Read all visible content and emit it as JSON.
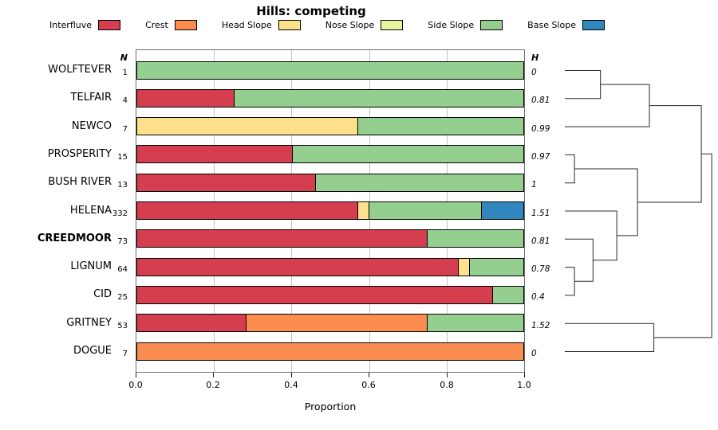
{
  "chart_data": {
    "type": "bar",
    "variant": "horizontal-stacked-proportion-with-dendrogram",
    "title": "Hills: competing",
    "xlabel": "Proportion",
    "xlim": [
      0,
      1
    ],
    "x_ticks": [
      {
        "label": "0.0",
        "value": 0.0
      },
      {
        "label": "0.2",
        "value": 0.2
      },
      {
        "label": "0.4",
        "value": 0.4
      },
      {
        "label": "0.6",
        "value": 0.6
      },
      {
        "label": "0.8",
        "value": 0.8
      },
      {
        "label": "1.0",
        "value": 1.0
      }
    ],
    "gridlines_x": [
      0.2,
      0.4,
      0.6,
      0.8
    ],
    "col_header_left": "N",
    "col_header_right": "H",
    "legend_position": "top",
    "categories": [
      {
        "label": "Interfluve",
        "color": "#D53E4F"
      },
      {
        "label": "Crest",
        "color": "#FB8D51"
      },
      {
        "label": "Head Slope",
        "color": "#FDE08B"
      },
      {
        "label": "Nose Slope",
        "color": "#E6F59B"
      },
      {
        "label": "Side Slope",
        "color": "#94CF90"
      },
      {
        "label": "Base Slope",
        "color": "#3187BD"
      }
    ],
    "rows": [
      {
        "name": "WOLFTEVER",
        "n": 1,
        "h": "0",
        "emphasis": false,
        "segments": [
          {
            "category": "Side Slope",
            "value": 1.0
          }
        ]
      },
      {
        "name": "TELFAIR",
        "n": 4,
        "h": "0.81",
        "emphasis": false,
        "segments": [
          {
            "category": "Interfluve",
            "value": 0.25
          },
          {
            "category": "Side Slope",
            "value": 0.75
          }
        ]
      },
      {
        "name": "NEWCO",
        "n": 7,
        "h": "0.99",
        "emphasis": false,
        "segments": [
          {
            "category": "Head Slope",
            "value": 0.57
          },
          {
            "category": "Side Slope",
            "value": 0.43
          }
        ]
      },
      {
        "name": "PROSPERITY",
        "n": 15,
        "h": "0.97",
        "emphasis": false,
        "segments": [
          {
            "category": "Interfluve",
            "value": 0.4
          },
          {
            "category": "Side Slope",
            "value": 0.6
          }
        ]
      },
      {
        "name": "BUSH RIVER",
        "n": 13,
        "h": "1",
        "emphasis": false,
        "segments": [
          {
            "category": "Interfluve",
            "value": 0.46
          },
          {
            "category": "Side Slope",
            "value": 0.54
          }
        ]
      },
      {
        "name": "HELENA",
        "n": 332,
        "h": "1.51",
        "emphasis": false,
        "segments": [
          {
            "category": "Interfluve",
            "value": 0.57
          },
          {
            "category": "Head Slope",
            "value": 0.03
          },
          {
            "category": "Side Slope",
            "value": 0.29
          },
          {
            "category": "Base Slope",
            "value": 0.11
          }
        ]
      },
      {
        "name": "CREEDMOOR",
        "n": 73,
        "h": "0.81",
        "emphasis": true,
        "segments": [
          {
            "category": "Interfluve",
            "value": 0.75
          },
          {
            "category": "Side Slope",
            "value": 0.25
          }
        ]
      },
      {
        "name": "LIGNUM",
        "n": 64,
        "h": "0.78",
        "emphasis": false,
        "segments": [
          {
            "category": "Interfluve",
            "value": 0.83
          },
          {
            "category": "Head Slope",
            "value": 0.03
          },
          {
            "category": "Side Slope",
            "value": 0.14
          }
        ]
      },
      {
        "name": "CID",
        "n": 25,
        "h": "0.4",
        "emphasis": false,
        "segments": [
          {
            "category": "Interfluve",
            "value": 0.92
          },
          {
            "category": "Side Slope",
            "value": 0.08
          }
        ]
      },
      {
        "name": "GRITNEY",
        "n": 53,
        "h": "1.52",
        "emphasis": false,
        "segments": [
          {
            "category": "Interfluve",
            "value": 0.28
          },
          {
            "category": "Crest",
            "value": 0.47
          },
          {
            "category": "Side Slope",
            "value": 0.25
          }
        ]
      },
      {
        "name": "DOGUE",
        "n": 7,
        "h": "0",
        "emphasis": false,
        "segments": [
          {
            "category": "Crest",
            "value": 1.0
          }
        ]
      }
    ],
    "dendrogram": {
      "position": "right",
      "merges": [
        {
          "x": 0.24,
          "a": {
            "row": 0,
            "x": 0
          },
          "b": {
            "row": 1,
            "x": 0
          }
        },
        {
          "x": 0.57,
          "a": {
            "row": 0.5,
            "x": 0.24
          },
          "b": {
            "row": 2,
            "x": 0
          }
        },
        {
          "x": 0.065,
          "a": {
            "row": 3,
            "x": 0
          },
          "b": {
            "row": 4,
            "x": 0
          }
        },
        {
          "x": 0.065,
          "a": {
            "row": 7,
            "x": 0
          },
          "b": {
            "row": 8,
            "x": 0
          }
        },
        {
          "x": 0.19,
          "a": {
            "row": 6,
            "x": 0
          },
          "b": {
            "row": 7.5,
            "x": 0.065
          }
        },
        {
          "x": 0.35,
          "a": {
            "row": 5,
            "x": 0
          },
          "b": {
            "row": 6.75,
            "x": 0.19
          }
        },
        {
          "x": 0.49,
          "a": {
            "row": 3.5,
            "x": 0.065
          },
          "b": {
            "row": 5.875,
            "x": 0.35
          }
        },
        {
          "x": 0.92,
          "a": {
            "row": 1.25,
            "x": 0.57
          },
          "b": {
            "row": 4.6875,
            "x": 0.49
          }
        },
        {
          "x": 0.6,
          "a": {
            "row": 9,
            "x": 0
          },
          "b": {
            "row": 10,
            "x": 0
          }
        },
        {
          "x": 0.99,
          "a": {
            "row": 2.96875,
            "x": 0.92
          },
          "b": {
            "row": 9.5,
            "x": 0.6
          }
        }
      ]
    }
  }
}
